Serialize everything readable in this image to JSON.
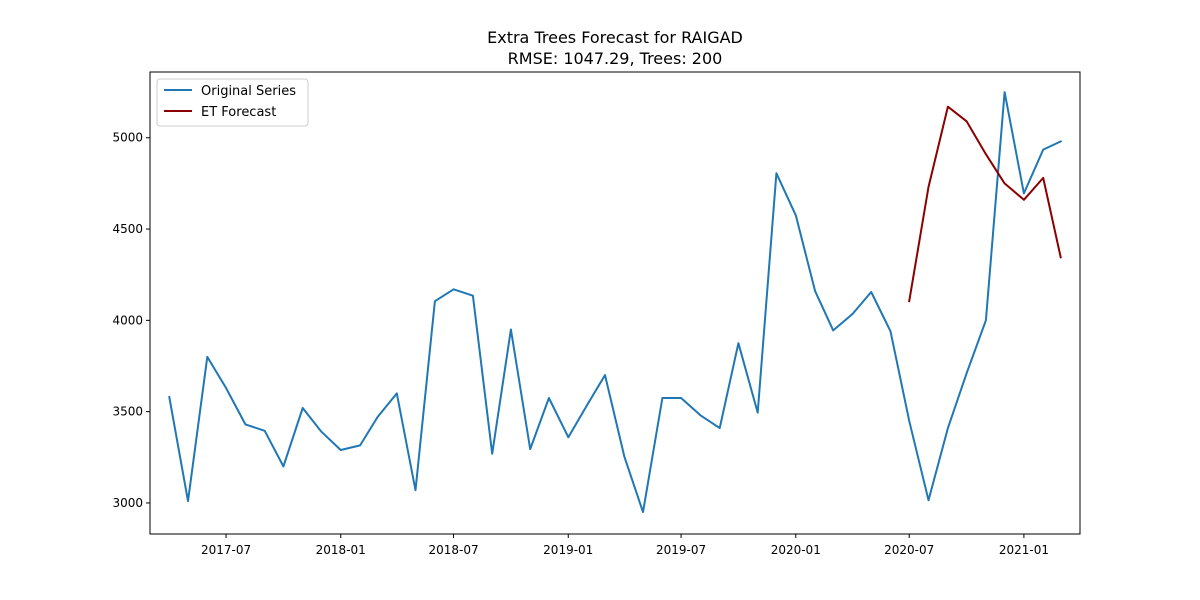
{
  "chart_data": {
    "type": "line",
    "title": "Extra Trees Forecast for RAIGAD",
    "subtitle": "RMSE: 1047.29, Trees: 200",
    "xlabel": "",
    "ylabel": "",
    "x_range": [
      "2017-03-01",
      "2021-04-01"
    ],
    "ylim": [
      2830,
      5360
    ],
    "x_ticks": [
      {
        "date": "2017-07-01",
        "label": "2017-07"
      },
      {
        "date": "2018-01-01",
        "label": "2018-01"
      },
      {
        "date": "2018-07-01",
        "label": "2018-07"
      },
      {
        "date": "2019-01-01",
        "label": "2019-01"
      },
      {
        "date": "2019-07-01",
        "label": "2019-07"
      },
      {
        "date": "2020-01-01",
        "label": "2020-01"
      },
      {
        "date": "2020-07-01",
        "label": "2020-07"
      },
      {
        "date": "2021-01-01",
        "label": "2021-01"
      }
    ],
    "y_ticks": [
      {
        "value": 3000,
        "label": "3000"
      },
      {
        "value": 3500,
        "label": "3500"
      },
      {
        "value": 4000,
        "label": "4000"
      },
      {
        "value": 4500,
        "label": "4500"
      },
      {
        "value": 5000,
        "label": "5000"
      }
    ],
    "grid": false,
    "legend_position": "top-left",
    "series": [
      {
        "name": "Original Series",
        "color": "#1f77b4",
        "x": [
          "2017-04-01",
          "2017-05-01",
          "2017-06-01",
          "2017-07-01",
          "2017-08-01",
          "2017-09-01",
          "2017-10-01",
          "2017-11-01",
          "2017-12-01",
          "2018-01-01",
          "2018-02-01",
          "2018-03-01",
          "2018-04-01",
          "2018-05-01",
          "2018-06-01",
          "2018-07-01",
          "2018-08-01",
          "2018-09-01",
          "2018-10-01",
          "2018-11-01",
          "2018-12-01",
          "2019-01-01",
          "2019-02-01",
          "2019-03-01",
          "2019-04-01",
          "2019-05-01",
          "2019-06-01",
          "2019-07-01",
          "2019-08-01",
          "2019-09-01",
          "2019-10-01",
          "2019-11-01",
          "2019-12-01",
          "2020-01-01",
          "2020-02-01",
          "2020-03-01",
          "2020-04-01",
          "2020-05-01",
          "2020-06-01",
          "2020-07-01",
          "2020-08-01",
          "2020-09-01",
          "2020-10-01",
          "2020-11-01",
          "2020-12-01",
          "2021-01-01",
          "2021-02-01",
          "2021-03-01"
        ],
        "values": [
          3580,
          3010,
          3800,
          3630,
          3430,
          3395,
          3200,
          3520,
          3390,
          3290,
          3315,
          3470,
          3600,
          3070,
          4105,
          4170,
          4135,
          3270,
          3950,
          3295,
          3575,
          3360,
          3540,
          3700,
          3255,
          2950,
          3575,
          3575,
          3480,
          3410,
          3875,
          3495,
          4805,
          4575,
          4160,
          3945,
          4035,
          4155,
          3940,
          3450,
          3015,
          3410,
          3710,
          4000,
          5250,
          4695,
          4935,
          4980
        ]
      },
      {
        "name": "ET Forecast",
        "color": "#8b0000",
        "x": [
          "2020-07-01",
          "2020-08-01",
          "2020-09-01",
          "2020-10-01",
          "2020-11-01",
          "2020-12-01",
          "2021-01-01",
          "2021-02-01",
          "2021-03-01"
        ],
        "values": [
          4105,
          4730,
          5170,
          5090,
          4910,
          4750,
          4660,
          4780,
          4345
        ]
      }
    ]
  }
}
